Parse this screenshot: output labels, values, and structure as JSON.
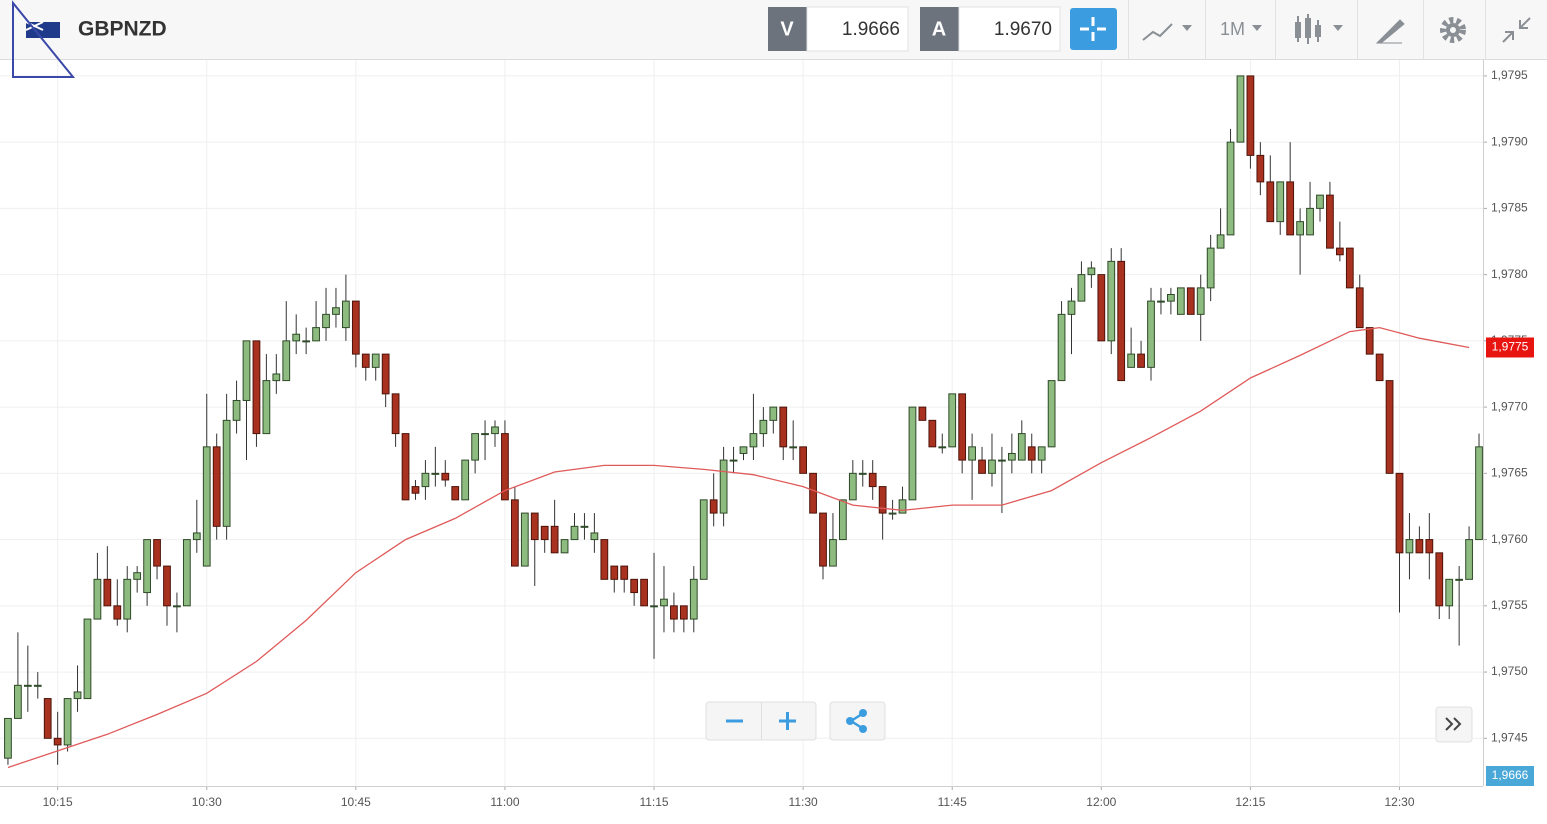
{
  "header": {
    "symbol": "GBPNZD",
    "bid_label": "V",
    "bid": "1.9666",
    "ask_label": "A",
    "ask": "1.9670",
    "timeframe": "1M"
  },
  "chart_data": {
    "type": "candlestick",
    "open": [
      1.97435,
      1.97465,
      1.9749,
      1.9749,
      1.9748,
      1.9745,
      1.97445,
      1.9748,
      1.9748,
      1.9754,
      1.9757,
      1.9755,
      1.9754,
      1.9757,
      1.9756,
      1.976,
      1.9758,
      1.9755,
      1.9755,
      1.976,
      1.9758,
      1.9767,
      1.9761,
      1.9769,
      1.97705,
      1.9775,
      1.9768,
      1.9772,
      1.9772,
      1.9775,
      1.9775,
      1.9775,
      1.9776,
      1.9777,
      1.9776,
      1.9778,
      1.9774,
      1.9773,
      1.9774,
      1.9771,
      1.9768,
      1.9764,
      1.9764,
      1.9765,
      1.9765,
      1.9764,
      1.9763,
      1.9766,
      1.9768,
      1.9768,
      1.9768,
      1.9763,
      1.9758,
      1.9762,
      1.9761,
      1.9761,
      1.9759,
      1.976,
      1.9761,
      1.976,
      1.976,
      1.9758,
      1.9758,
      1.9757,
      1.9757,
      1.9755,
      1.9755,
      1.9755,
      1.9755,
      1.9754,
      1.9757,
      1.9763,
      1.9762,
      1.9766,
      1.97665,
      1.9767,
      1.9768,
      1.9769,
      1.977,
      1.9767,
      1.9767,
      1.9765,
      1.9762,
      1.9758,
      1.976,
      1.9763,
      1.9765,
      1.9765,
      1.9764,
      1.9762,
      1.9762,
      1.9763,
      1.977,
      1.9769,
      1.9767,
      1.9767,
      1.9771,
      1.9766,
      1.9766,
      1.9765,
      1.9766,
      1.9766,
      1.9766,
      1.9767,
      1.9766,
      1.9767,
      1.9772,
      1.9777,
      1.9778,
      1.978,
      1.978,
      1.9775,
      1.9781,
      1.9773,
      1.9774,
      1.9773,
      1.9778,
      1.9778,
      1.9777,
      1.9779,
      1.9777,
      1.9779,
      1.9782,
      1.9783,
      1.979,
      1.9795,
      1.9789,
      1.9787,
      1.9784,
      1.9787,
      1.9783,
      1.9783,
      1.9785,
      1.9786,
      1.9782,
      1.9782,
      1.9779,
      1.9776,
      1.9774,
      1.9772,
      1.9765,
      1.9759,
      1.976,
      1.976,
      1.9759,
      1.9755,
      1.9757,
      1.9757,
      1.976
    ],
    "high": [
      1.97465,
      1.9753,
      1.9752,
      1.975,
      1.9748,
      1.9747,
      1.9748,
      1.97505,
      1.9754,
      1.9759,
      1.97595,
      1.9757,
      1.9758,
      1.9758,
      1.976,
      1.976,
      1.9758,
      1.9756,
      1.976,
      1.9763,
      1.9771,
      1.9768,
      1.9771,
      1.9772,
      1.9775,
      1.9775,
      1.9774,
      1.9774,
      1.9778,
      1.9777,
      1.9776,
      1.9778,
      1.9779,
      1.9779,
      1.978,
      1.9778,
      1.9774,
      1.9774,
      1.9774,
      1.9771,
      1.9768,
      1.97645,
      1.9766,
      1.9767,
      1.9766,
      1.9764,
      1.9766,
      1.9768,
      1.9769,
      1.9769,
      1.9769,
      1.9764,
      1.9762,
      1.9762,
      1.9761,
      1.9763,
      1.976,
      1.9762,
      1.9762,
      1.9762,
      1.976,
      1.9758,
      1.9758,
      1.9757,
      1.9757,
      1.9759,
      1.9758,
      1.9756,
      1.9755,
      1.9758,
      1.9763,
      1.9765,
      1.9767,
      1.9767,
      1.9767,
      1.9771,
      1.977,
      1.977,
      1.977,
      1.9769,
      1.9767,
      1.9765,
      1.9762,
      1.9762,
      1.9763,
      1.9766,
      1.9766,
      1.9766,
      1.9764,
      1.9763,
      1.9764,
      1.977,
      1.977,
      1.9769,
      1.9768,
      1.9771,
      1.9771,
      1.9768,
      1.9767,
      1.9768,
      1.9767,
      1.9768,
      1.9769,
      1.9768,
      1.9767,
      1.9772,
      1.9778,
      1.9779,
      1.9781,
      1.9781,
      1.978,
      1.9782,
      1.9782,
      1.9776,
      1.9775,
      1.9779,
      1.9779,
      1.9779,
      1.9779,
      1.9779,
      1.978,
      1.9783,
      1.9785,
      1.9791,
      1.9795,
      1.9795,
      1.979,
      1.9789,
      1.9787,
      1.979,
      1.9785,
      1.9787,
      1.9786,
      1.9787,
      1.9784,
      1.9782,
      1.978,
      1.9776,
      1.9774,
      1.9772,
      1.9765,
      1.9762,
      1.9761,
      1.9762,
      1.9759,
      1.9757,
      1.9758,
      1.9761,
      1.9768
    ],
    "low": [
      1.9743,
      1.97465,
      1.9747,
      1.9748,
      1.9745,
      1.9743,
      1.9744,
      1.9747,
      1.9748,
      1.9754,
      1.9755,
      1.97535,
      1.9753,
      1.9756,
      1.9755,
      1.9757,
      1.97535,
      1.9753,
      1.9755,
      1.9759,
      1.9758,
      1.976,
      1.976,
      1.9768,
      1.9766,
      1.9767,
      1.9768,
      1.9771,
      1.9772,
      1.9774,
      1.9774,
      1.9775,
      1.9775,
      1.9776,
      1.9775,
      1.9773,
      1.9772,
      1.9772,
      1.977,
      1.9767,
      1.9763,
      1.9763,
      1.9763,
      1.9764,
      1.9764,
      1.9763,
      1.9763,
      1.9765,
      1.9766,
      1.9767,
      1.9763,
      1.9758,
      1.9758,
      1.97565,
      1.9759,
      1.9759,
      1.9759,
      1.976,
      1.976,
      1.9759,
      1.9757,
      1.9756,
      1.9756,
      1.9755,
      1.9755,
      1.9751,
      1.9753,
      1.9753,
      1.9753,
      1.9753,
      1.9757,
      1.9761,
      1.9761,
      1.9765,
      1.9766,
      1.9766,
      1.9767,
      1.9768,
      1.9766,
      1.9766,
      1.9765,
      1.9762,
      1.9757,
      1.9758,
      1.976,
      1.9763,
      1.9764,
      1.9763,
      1.976,
      1.97615,
      1.9762,
      1.9763,
      1.9769,
      1.9767,
      1.97665,
      1.9767,
      1.9765,
      1.9763,
      1.9765,
      1.9764,
      1.9762,
      1.9765,
      1.9766,
      1.9765,
      1.9765,
      1.9767,
      1.9772,
      1.9774,
      1.9778,
      1.9779,
      1.9775,
      1.9774,
      1.9772,
      1.9773,
      1.9773,
      1.9772,
      1.9777,
      1.9777,
      1.9777,
      1.9777,
      1.9775,
      1.9778,
      1.9782,
      1.9783,
      1.979,
      1.9788,
      1.9786,
      1.9784,
      1.9783,
      1.9783,
      1.978,
      1.9783,
      1.9784,
      1.9782,
      1.9781,
      1.9779,
      1.9776,
      1.9774,
      1.9772,
      1.9765,
      1.97545,
      1.9757,
      1.9759,
      1.9757,
      1.9754,
      1.9754,
      1.9752,
      1.9757,
      1.976
    ],
    "close": [
      1.97465,
      1.9749,
      1.9749,
      1.9749,
      1.9745,
      1.97445,
      1.9748,
      1.97485,
      1.9754,
      1.9757,
      1.9755,
      1.9754,
      1.9757,
      1.97575,
      1.976,
      1.9758,
      1.9755,
      1.9755,
      1.976,
      1.97605,
      1.9767,
      1.9761,
      1.9769,
      1.97705,
      1.9775,
      1.9768,
      1.9772,
      1.97725,
      1.9775,
      1.97755,
      1.9775,
      1.9776,
      1.9777,
      1.97775,
      1.9778,
      1.9774,
      1.9773,
      1.9774,
      1.9771,
      1.9768,
      1.9763,
      1.97635,
      1.9765,
      1.9765,
      1.97645,
      1.9763,
      1.9766,
      1.9768,
      1.9768,
      1.97685,
      1.9763,
      1.9758,
      1.9762,
      1.976,
      1.976,
      1.9759,
      1.976,
      1.9761,
      1.9761,
      1.97605,
      1.9757,
      1.9757,
      1.9757,
      1.9756,
      1.9755,
      1.9755,
      1.97555,
      1.9754,
      1.9754,
      1.9757,
      1.9763,
      1.9762,
      1.9766,
      1.9766,
      1.9767,
      1.9768,
      1.9769,
      1.977,
      1.9767,
      1.9767,
      1.9765,
      1.9762,
      1.9758,
      1.976,
      1.9763,
      1.9765,
      1.9765,
      1.9764,
      1.9762,
      1.9762,
      1.9763,
      1.977,
      1.9769,
      1.9767,
      1.9767,
      1.9771,
      1.9766,
      1.9767,
      1.9765,
      1.9766,
      1.9766,
      1.97665,
      1.9768,
      1.9766,
      1.9767,
      1.9772,
      1.9777,
      1.9778,
      1.978,
      1.97805,
      1.9775,
      1.9781,
      1.9772,
      1.9774,
      1.9773,
      1.9778,
      1.9778,
      1.97785,
      1.9779,
      1.9777,
      1.9779,
      1.9782,
      1.9783,
      1.979,
      1.9795,
      1.9789,
      1.9787,
      1.9784,
      1.9787,
      1.9783,
      1.9784,
      1.9785,
      1.9786,
      1.9782,
      1.97815,
      1.9779,
      1.9776,
      1.9774,
      1.9772,
      1.9765,
      1.9759,
      1.976,
      1.9759,
      1.9759,
      1.9755,
      1.9757,
      1.9757,
      1.976,
      1.9767
    ],
    "up_color": "#8dbb80",
    "down_color": "#a8321f",
    "ma": {
      "x": [
        0,
        10,
        15,
        20,
        25,
        30,
        35,
        40,
        45,
        50,
        55,
        60,
        65,
        70,
        75,
        80,
        85,
        90,
        95,
        100,
        105,
        110,
        115,
        120,
        125,
        130,
        135,
        138,
        142,
        147
      ],
      "values": [
        1.97428,
        1.97453,
        1.97468,
        1.97484,
        1.97508,
        1.97539,
        1.97575,
        1.976,
        1.97616,
        1.97637,
        1.97651,
        1.97656,
        1.97656,
        1.97653,
        1.97649,
        1.9764,
        1.97626,
        1.97622,
        1.97626,
        1.97626,
        1.97637,
        1.97658,
        1.97677,
        1.97697,
        1.97722,
        1.97739,
        1.97757,
        1.9776,
        1.97752,
        1.97745
      ],
      "color": "#e05a5a",
      "last_label": "1,9775"
    },
    "price_marker": "1,9666",
    "xlim": [
      -0.8,
      148.4
    ],
    "xticks": [
      {
        "value": 5,
        "label": "10:15"
      },
      {
        "value": 20,
        "label": "10:30"
      },
      {
        "value": 35,
        "label": "10:45"
      },
      {
        "value": 50,
        "label": "11:00"
      },
      {
        "value": 65,
        "label": "11:15"
      },
      {
        "value": 80,
        "label": "11:30"
      },
      {
        "value": 95,
        "label": "11:45"
      },
      {
        "value": 110,
        "label": "12:00"
      },
      {
        "value": 125,
        "label": "12:15"
      },
      {
        "value": 140,
        "label": "12:30"
      }
    ],
    "ylim": [
      1.97414,
      1.97962
    ],
    "yticks": [
      {
        "value": 1.9745,
        "label": "1,9745"
      },
      {
        "value": 1.975,
        "label": "1,9750"
      },
      {
        "value": 1.9755,
        "label": "1,9755"
      },
      {
        "value": 1.976,
        "label": "1,9760"
      },
      {
        "value": 1.9765,
        "label": "1,9765"
      },
      {
        "value": 1.977,
        "label": "1,9770"
      },
      {
        "value": 1.9775,
        "label": "1,9775"
      },
      {
        "value": 1.978,
        "label": "1,9780"
      },
      {
        "value": 1.9785,
        "label": "1,9785"
      },
      {
        "value": 1.979,
        "label": "1,9790"
      },
      {
        "value": 1.9795,
        "label": "1,9795"
      }
    ],
    "grid": true
  }
}
